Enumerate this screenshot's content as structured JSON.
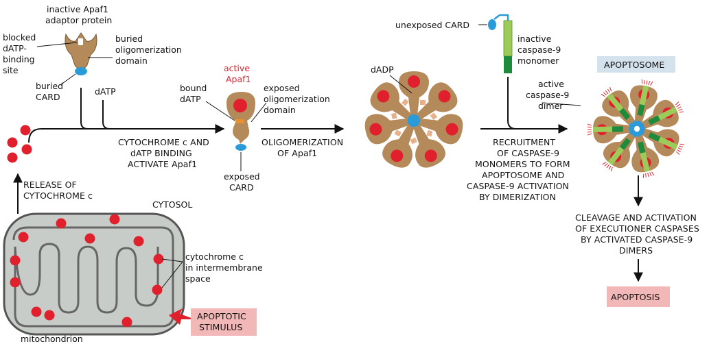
{
  "labels": {
    "inactive_apaf1": [
      "inactive Apaf1",
      "adaptor protein"
    ],
    "blocked_site": [
      "blocked",
      "dATP-",
      "binding",
      "site"
    ],
    "buried_oligo": [
      "buried",
      "oligomerization",
      "domain"
    ],
    "buried_card": [
      "buried",
      "CARD"
    ],
    "datp": "dATP",
    "active_apaf1": [
      "active",
      "Apaf1"
    ],
    "bound_datp": [
      "bound",
      "dATP"
    ],
    "exposed_oligo": [
      "exposed",
      "oligomerization",
      "domain"
    ],
    "exposed_card": [
      "exposed",
      "CARD"
    ],
    "dadp": "dADP",
    "unexposed_card": "unexposed CARD",
    "inactive_caspase": [
      "inactive",
      "caspase-9",
      "monomer"
    ],
    "active_caspase": [
      "active",
      "caspase-9",
      "dimer"
    ],
    "cytosol": "CYTOSOL",
    "cytochrome_c_in": [
      "cytochrome c",
      "in intermembrane",
      "space"
    ],
    "mitochondrion": "mitochondrion"
  },
  "steps": {
    "release": [
      "RELEASE OF",
      "CYTOCHROME c"
    ],
    "binding": [
      "CYTOCHROME c AND",
      "dATP BINDING",
      "ACTIVATE Apaf1"
    ],
    "oligomerization": [
      "OLIGOMERIZATION",
      "OF Apaf1"
    ],
    "recruitment": [
      "RECRUITMENT",
      "OF CASPASE-9",
      "MONOMERS TO FORM",
      "APOPTOSOME AND",
      "CASPASE-9 ACTIVATION",
      "BY DIMERIZATION"
    ],
    "cleavage": [
      "CLEAVAGE AND ACTIVATION",
      "OF EXECUTIONER CASPASES",
      "BY ACTIVATED CASPASE-9",
      "DIMERS"
    ]
  },
  "boxes": {
    "apoptosome": "APOPTOSOME",
    "apoptotic_stimulus": [
      "APOPTOTIC",
      "STIMULUS"
    ],
    "apoptosis": "APOPTOSIS"
  },
  "colors": {
    "protein_tan": "#b48a5a",
    "cytochrome_red": "#e0212d",
    "card_blue": "#2a9bd8",
    "datp_orange": "#e8902c",
    "dadp_peach": "#e8b08a",
    "caspase_green_light": "#9ccb5a",
    "caspase_green_dark": "#1e8a3c",
    "mito_gray": "#c8ccc8",
    "apoptosome_box": "#d4e2ee",
    "stimulus_box": "#f2b8b8"
  }
}
